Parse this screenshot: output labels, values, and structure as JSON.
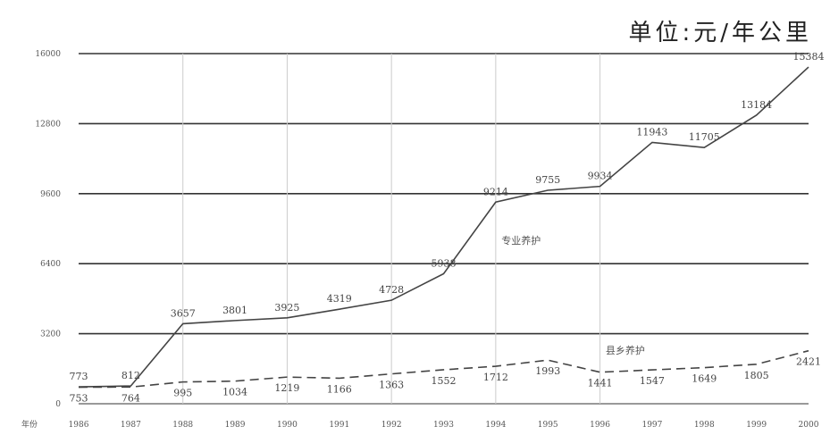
{
  "chart_data": {
    "type": "line",
    "unit_label": "单位:元/年公里",
    "xlabel": "年份",
    "x": [
      "1986",
      "1987",
      "1988",
      "1989",
      "1990",
      "1991",
      "1992",
      "1993",
      "1994",
      "1995",
      "1996",
      "1997",
      "1998",
      "1999",
      "2000"
    ],
    "yticks": [
      "0",
      "3200",
      "6400",
      "9600",
      "12800",
      "16000"
    ],
    "ylim": [
      0,
      16000
    ],
    "grid": "horizontal",
    "series": [
      {
        "name": "专业养护",
        "style": "solid",
        "values": [
          773,
          812,
          3657,
          3801,
          3925,
          4319,
          4728,
          5938,
          9214,
          9755,
          9934,
          11943,
          11705,
          13184,
          15384
        ]
      },
      {
        "name": "县乡养护",
        "style": "dashed",
        "values": [
          753,
          764,
          995,
          1034,
          1219,
          1166,
          1363,
          1552,
          1712,
          1993,
          1441,
          1547,
          1649,
          1805,
          2421
        ]
      }
    ]
  }
}
